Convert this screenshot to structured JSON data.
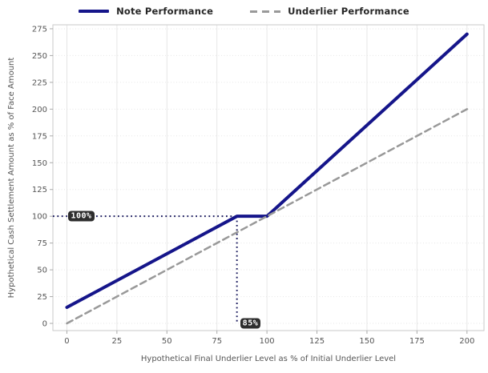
{
  "legend": {
    "items": [
      {
        "label": "Note Performance",
        "color": "#15158a",
        "style": "solid"
      },
      {
        "label": "Underlier Performance",
        "color": "#999999",
        "style": "dashed"
      }
    ]
  },
  "chart_data": {
    "type": "line",
    "title": "",
    "xlabel": "Hypothetical Final Underlier Level as % of Initial Underlier Level",
    "ylabel": "Hypothetical Cash Settlement Amount as % of Face Amount",
    "x_ticks": [
      0,
      25,
      50,
      75,
      100,
      125,
      150,
      175,
      200
    ],
    "y_ticks": [
      0,
      25,
      50,
      75,
      100,
      125,
      150,
      175,
      200,
      225,
      250,
      275
    ],
    "xlim": [
      -7,
      208.5
    ],
    "ylim": [
      -6.7,
      278.7
    ],
    "grid": true,
    "legend_position": "top-center",
    "series": [
      {
        "name": "Note Performance",
        "color": "#15158a",
        "dash": "solid",
        "width": 4,
        "points": [
          [
            0,
            15
          ],
          [
            85,
            100
          ],
          [
            100,
            100
          ],
          [
            200,
            270
          ]
        ]
      },
      {
        "name": "Underlier Performance",
        "color": "#999999",
        "dash": "dashed",
        "width": 2.5,
        "points": [
          [
            0,
            0
          ],
          [
            200,
            200
          ]
        ]
      }
    ],
    "annotations": [
      {
        "label": "100%",
        "anchor_x": 0,
        "anchor_y": 100,
        "dotted_path": [
          [
            -7,
            100
          ],
          [
            85,
            100
          ]
        ],
        "line_color": "#1a1a5e"
      },
      {
        "label": "85%",
        "anchor_x": 85,
        "anchor_y": 0,
        "dotted_path": [
          [
            85,
            100
          ],
          [
            85,
            0
          ]
        ],
        "line_color": "#1a1a5e"
      }
    ],
    "annotation_badge": {
      "bg": "#2d2d2d",
      "text_color": "#ffffff"
    }
  },
  "colors": {
    "background": "#ffffff",
    "plot_border": "#c9c9c9",
    "grid": "#e6e6e6",
    "tick": "#aaaaaa",
    "tick_label": "#555555",
    "axis_label": "#555555",
    "legend_text": "#262626"
  }
}
